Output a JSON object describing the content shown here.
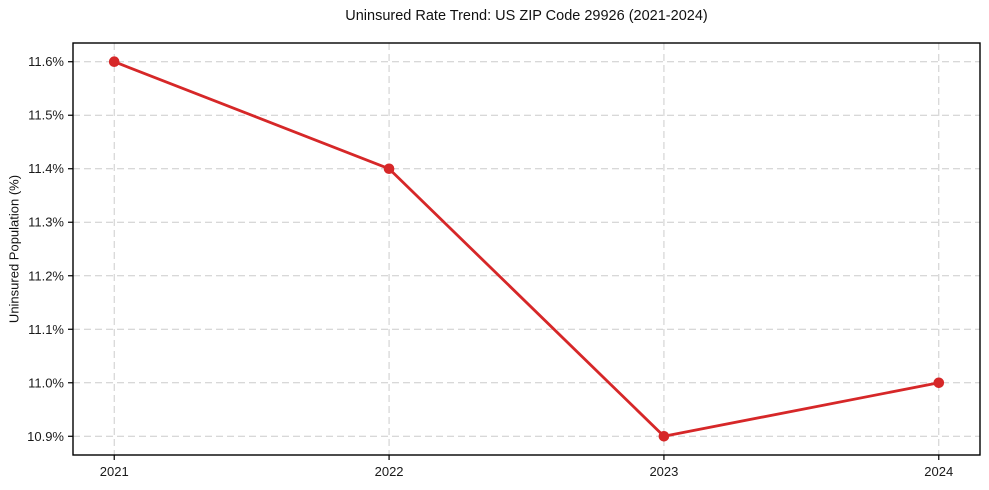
{
  "chart_data": {
    "type": "line",
    "title": "Uninsured Rate Trend: US ZIP Code 29926 (2021-2024)",
    "xlabel": "",
    "ylabel": "Uninsured Population (%)",
    "x": [
      2021,
      2022,
      2023,
      2024
    ],
    "xtick_labels": [
      "2021",
      "2022",
      "2023",
      "2024"
    ],
    "series": [
      {
        "name": "Uninsured rate",
        "values": [
          11.6,
          11.4,
          10.9,
          11.0
        ]
      }
    ],
    "yticks": [
      10.9,
      11.0,
      11.1,
      11.2,
      11.3,
      11.4,
      11.5,
      11.6
    ],
    "ytick_labels": [
      "10.9%",
      "11.0%",
      "11.1%",
      "11.2%",
      "11.3%",
      "11.4%",
      "11.5%",
      "11.6%"
    ],
    "xlim": [
      2020.85,
      2024.15
    ],
    "ylim": [
      10.865,
      11.635
    ],
    "grid": true,
    "legend": false,
    "line_color": "#d62728",
    "marker": "circle",
    "grid_color": "#cccccc",
    "spine_color": "#000000",
    "background": "#ffffff"
  }
}
